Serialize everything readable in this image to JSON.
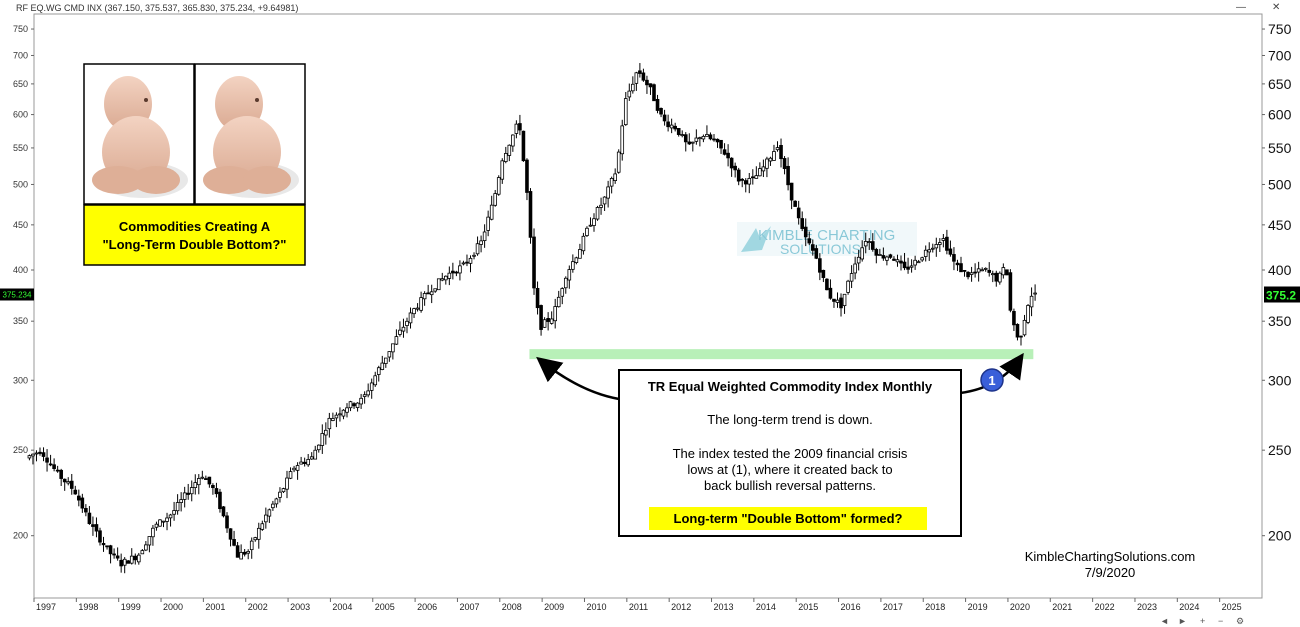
{
  "header": {
    "ohlc": "RF EQ.WG CMD INX (367.150, 375.537, 365.830, 375.234, +9.64981)"
  },
  "window_controls": {
    "minimize": "—",
    "close": "✕"
  },
  "price_badge": {
    "left": "375.234",
    "right": "375.2"
  },
  "top_box": {
    "line1": "Commodities Creating A",
    "line2": "\"Long-Term Double Bottom?\""
  },
  "annotation": {
    "title": "TR Equal Weighted Commodity Index Monthly",
    "line1": "The long-term trend is down.",
    "line2": "The index tested the 2009 financial crisis",
    "line3": "lows at (1), where it created back to",
    "line4": "back bullish reversal patterns.",
    "highlight": "Long-term \"Double Bottom\" formed?"
  },
  "marker": {
    "label": "1"
  },
  "watermark": {
    "line1": "KIMBLE CHARTING",
    "line2": "SOLUTIONS"
  },
  "footer": {
    "site": "KimbleChartingSolutions.com",
    "date": "7/9/2020"
  },
  "colors": {
    "support": "#b8f0b8",
    "badge": "#000000",
    "badge_text": "#33ff33",
    "box_yellow": "#ffff00",
    "marker": "#3a5fd9"
  },
  "chart_data": {
    "type": "candlestick",
    "scale": "log",
    "ylim": [
      170,
      780
    ],
    "xlim": [
      1997,
      2026
    ],
    "y_ticks": [
      200,
      250,
      300,
      350,
      400,
      450,
      500,
      550,
      600,
      650,
      700,
      750
    ],
    "x_ticks": [
      "1997",
      "1998",
      "1999",
      "2000",
      "2001",
      "2002",
      "2003",
      "2004",
      "2005",
      "2006",
      "2007",
      "2008",
      "2009",
      "2010",
      "2011",
      "2012",
      "2013",
      "2014",
      "2015",
      "2016",
      "2017",
      "2018",
      "2019",
      "2020",
      "2021",
      "2022",
      "2023",
      "2024",
      "2025"
    ],
    "support_level": 322,
    "support_range": [
      2008.7,
      2020.6
    ],
    "last_value": 375.234,
    "path": [
      [
        1996.85,
        245
      ],
      [
        1997.2,
        250
      ],
      [
        1997.6,
        235
      ],
      [
        1998.0,
        225
      ],
      [
        1998.4,
        205
      ],
      [
        1998.8,
        192
      ],
      [
        1999.1,
        186
      ],
      [
        1999.5,
        190
      ],
      [
        1999.9,
        205
      ],
      [
        2000.3,
        212
      ],
      [
        2000.7,
        225
      ],
      [
        2001.0,
        235
      ],
      [
        2001.3,
        225
      ],
      [
        2001.6,
        205
      ],
      [
        2001.85,
        190
      ],
      [
        2002.1,
        192
      ],
      [
        2002.5,
        210
      ],
      [
        2002.9,
        225
      ],
      [
        2003.2,
        240
      ],
      [
        2003.6,
        245
      ],
      [
        2004.0,
        270
      ],
      [
        2004.4,
        280
      ],
      [
        2004.8,
        285
      ],
      [
        2005.2,
        310
      ],
      [
        2005.6,
        335
      ],
      [
        2006.0,
        360
      ],
      [
        2006.4,
        380
      ],
      [
        2006.8,
        395
      ],
      [
        2007.2,
        405
      ],
      [
        2007.6,
        430
      ],
      [
        2007.9,
        480
      ],
      [
        2008.1,
        535
      ],
      [
        2008.5,
        590
      ],
      [
        2008.7,
        480
      ],
      [
        2008.85,
        380
      ],
      [
        2009.0,
        345
      ],
      [
        2009.3,
        355
      ],
      [
        2009.6,
        395
      ],
      [
        2009.9,
        420
      ],
      [
        2010.2,
        455
      ],
      [
        2010.5,
        480
      ],
      [
        2010.8,
        520
      ],
      [
        2011.0,
        620
      ],
      [
        2011.3,
        675
      ],
      [
        2011.6,
        640
      ],
      [
        2011.9,
        590
      ],
      [
        2012.2,
        580
      ],
      [
        2012.5,
        550
      ],
      [
        2012.8,
        570
      ],
      [
        2013.1,
        560
      ],
      [
        2013.4,
        540
      ],
      [
        2013.7,
        505
      ],
      [
        2014.0,
        505
      ],
      [
        2014.3,
        525
      ],
      [
        2014.6,
        555
      ],
      [
        2014.9,
        490
      ],
      [
        2015.2,
        440
      ],
      [
        2015.5,
        415
      ],
      [
        2015.8,
        375
      ],
      [
        2016.1,
        365
      ],
      [
        2016.4,
        405
      ],
      [
        2016.7,
        435
      ],
      [
        2017.0,
        415
      ],
      [
        2017.3,
        415
      ],
      [
        2017.6,
        400
      ],
      [
        2017.9,
        410
      ],
      [
        2018.2,
        425
      ],
      [
        2018.5,
        435
      ],
      [
        2018.8,
        405
      ],
      [
        2019.1,
        395
      ],
      [
        2019.5,
        400
      ],
      [
        2019.8,
        390
      ],
      [
        2020.0,
        405
      ],
      [
        2020.1,
        360
      ],
      [
        2020.3,
        330
      ],
      [
        2020.5,
        365
      ],
      [
        2020.6,
        375
      ]
    ]
  }
}
